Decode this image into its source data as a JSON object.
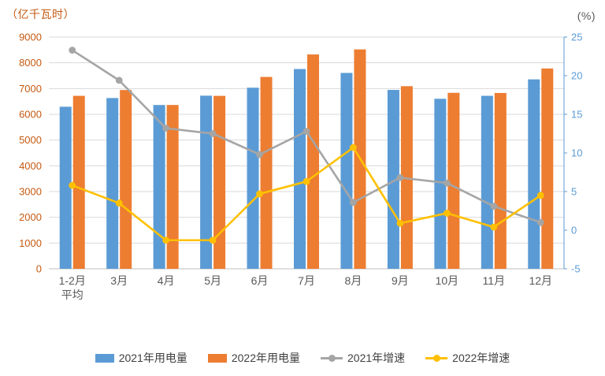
{
  "page": {
    "background": "#FFFFFF"
  },
  "chart_data": {
    "type": "bar",
    "subtype": "combo-bar-line",
    "title": "",
    "categories": [
      "1-2月\n平均",
      "3月",
      "4月",
      "5月",
      "6月",
      "7月",
      "8月",
      "9月",
      "10月",
      "11月",
      "12月"
    ],
    "left_axis": {
      "label": "（亿千瓦时）",
      "min": 0,
      "max": 9000,
      "step": 1000,
      "color": "#C55A11"
    },
    "right_axis": {
      "label": "(%)",
      "min": -5,
      "max": 25,
      "step": 5,
      "color": "#5B9BD5",
      "label_color": "#595959"
    },
    "series": [
      {
        "name": "2021年用电量",
        "type": "bar",
        "axis": "left",
        "color": "#5B9BD5",
        "values": [
          6294,
          6631,
          6361,
          6724,
          7033,
          7758,
          7607,
          6947,
          6603,
          6718,
          7357
        ]
      },
      {
        "name": "2022年用电量",
        "type": "bar",
        "axis": "left",
        "color": "#ED7D31",
        "values": [
          6717,
          6944,
          6362,
          6716,
          7451,
          8324,
          8520,
          7092,
          6834,
          6828,
          7780
        ]
      },
      {
        "name": "2021年增速",
        "type": "line",
        "axis": "right",
        "color": "#A5A5A5",
        "values": [
          23.3,
          19.4,
          13.2,
          12.5,
          9.8,
          12.8,
          3.6,
          6.8,
          6.1,
          3.1,
          1.0
        ]
      },
      {
        "name": "2022年增速",
        "type": "line",
        "axis": "right",
        "color": "#FFC000",
        "values": [
          5.8,
          3.5,
          -1.3,
          -1.3,
          4.7,
          6.3,
          10.7,
          0.9,
          2.2,
          0.4,
          4.5
        ]
      }
    ],
    "grid_on": true,
    "grid_color": "#D9D9D9",
    "axis_line_color": "#BFBFBF",
    "x_label_color": "#595959",
    "legend_position": "bottom"
  }
}
